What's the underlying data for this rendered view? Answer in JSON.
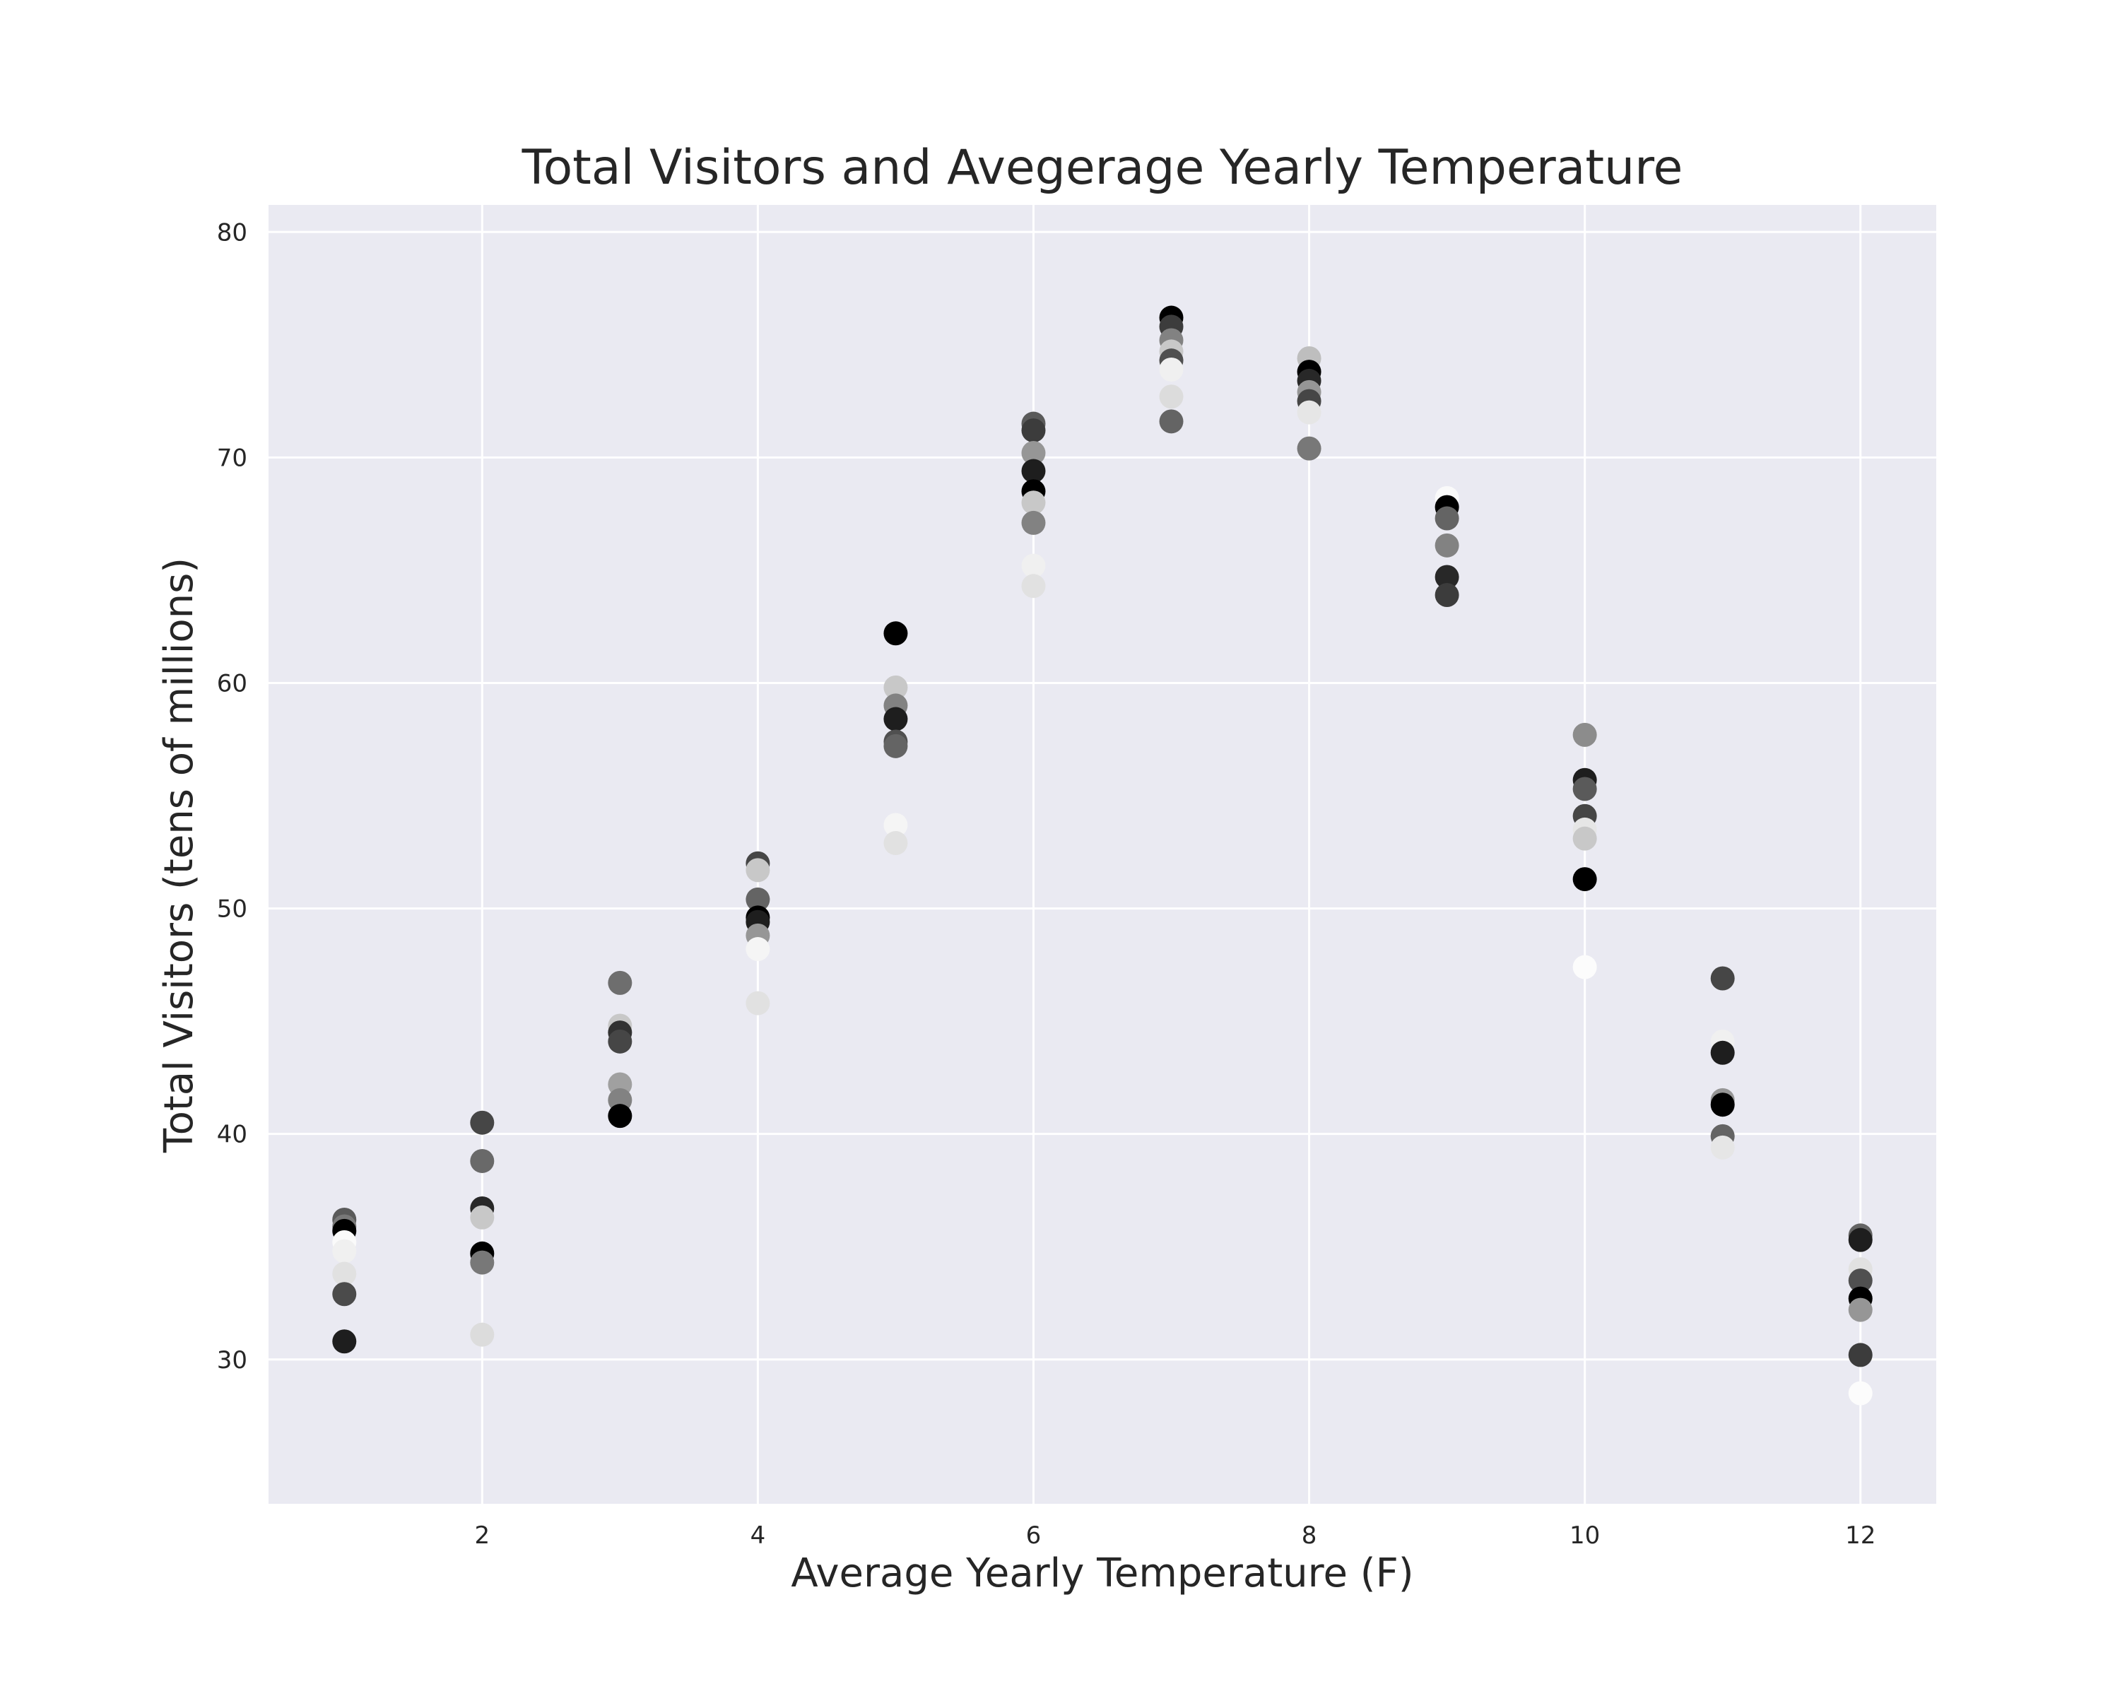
{
  "chart_data": {
    "type": "scatter",
    "title": "Total Visitors and Avegerage Yearly Temperature",
    "xlabel": "Average Yearly Temperature (F)",
    "ylabel": "Total Visitors (tens of millions)",
    "xlim": [
      0.45,
      12.55
    ],
    "ylim": [
      23.6,
      81.2
    ],
    "xticks": [
      2,
      4,
      6,
      8,
      10,
      12
    ],
    "yticks": [
      30,
      40,
      50,
      60,
      70,
      80
    ],
    "grid": true,
    "background": "#eaeaf2",
    "points": [
      {
        "x": 1,
        "y": 36.2,
        "g": 90
      },
      {
        "x": 1,
        "y": 35.9,
        "g": 120
      },
      {
        "x": 1,
        "y": 35.7,
        "g": 0
      },
      {
        "x": 1,
        "y": 35.2,
        "g": 250
      },
      {
        "x": 1,
        "y": 34.8,
        "g": 240
      },
      {
        "x": 1,
        "y": 33.8,
        "g": 225
      },
      {
        "x": 1,
        "y": 32.9,
        "g": 75
      },
      {
        "x": 1,
        "y": 30.8,
        "g": 30
      },
      {
        "x": 2,
        "y": 40.5,
        "g": 70
      },
      {
        "x": 2,
        "y": 38.8,
        "g": 105
      },
      {
        "x": 2,
        "y": 36.7,
        "g": 40
      },
      {
        "x": 2,
        "y": 36.3,
        "g": 200
      },
      {
        "x": 2,
        "y": 34.7,
        "g": 0
      },
      {
        "x": 2,
        "y": 34.3,
        "g": 120
      },
      {
        "x": 2,
        "y": 31.1,
        "g": 220
      },
      {
        "x": 3,
        "y": 46.7,
        "g": 110
      },
      {
        "x": 3,
        "y": 44.8,
        "g": 200
      },
      {
        "x": 3,
        "y": 44.5,
        "g": 50
      },
      {
        "x": 3,
        "y": 44.1,
        "g": 70
      },
      {
        "x": 3,
        "y": 42.2,
        "g": 160
      },
      {
        "x": 3,
        "y": 41.5,
        "g": 130
      },
      {
        "x": 3,
        "y": 40.8,
        "g": 0
      },
      {
        "x": 4,
        "y": 52.0,
        "g": 70
      },
      {
        "x": 4,
        "y": 51.7,
        "g": 200
      },
      {
        "x": 4,
        "y": 50.4,
        "g": 100
      },
      {
        "x": 4,
        "y": 49.6,
        "g": 0
      },
      {
        "x": 4,
        "y": 49.4,
        "g": 30
      },
      {
        "x": 4,
        "y": 48.8,
        "g": 150
      },
      {
        "x": 4,
        "y": 48.2,
        "g": 245
      },
      {
        "x": 4,
        "y": 45.8,
        "g": 225
      },
      {
        "x": 5,
        "y": 62.2,
        "g": 0
      },
      {
        "x": 5,
        "y": 59.8,
        "g": 200
      },
      {
        "x": 5,
        "y": 59.0,
        "g": 130
      },
      {
        "x": 5,
        "y": 58.4,
        "g": 30
      },
      {
        "x": 5,
        "y": 57.4,
        "g": 80
      },
      {
        "x": 5,
        "y": 57.2,
        "g": 100
      },
      {
        "x": 5,
        "y": 53.7,
        "g": 245
      },
      {
        "x": 5,
        "y": 52.9,
        "g": 225
      },
      {
        "x": 6,
        "y": 71.5,
        "g": 90
      },
      {
        "x": 6,
        "y": 71.2,
        "g": 60
      },
      {
        "x": 6,
        "y": 70.2,
        "g": 150
      },
      {
        "x": 6,
        "y": 69.4,
        "g": 30
      },
      {
        "x": 6,
        "y": 68.5,
        "g": 0
      },
      {
        "x": 6,
        "y": 68.0,
        "g": 200
      },
      {
        "x": 6,
        "y": 67.1,
        "g": 130
      },
      {
        "x": 6,
        "y": 65.2,
        "g": 240
      },
      {
        "x": 6,
        "y": 64.3,
        "g": 225
      },
      {
        "x": 7,
        "y": 76.2,
        "g": 0
      },
      {
        "x": 7,
        "y": 75.8,
        "g": 60
      },
      {
        "x": 7,
        "y": 75.2,
        "g": 130
      },
      {
        "x": 7,
        "y": 74.7,
        "g": 200
      },
      {
        "x": 7,
        "y": 74.3,
        "g": 80
      },
      {
        "x": 7,
        "y": 73.9,
        "g": 240
      },
      {
        "x": 7,
        "y": 72.7,
        "g": 220
      },
      {
        "x": 7,
        "y": 71.6,
        "g": 100
      },
      {
        "x": 8,
        "y": 74.4,
        "g": 190
      },
      {
        "x": 8,
        "y": 73.8,
        "g": 0
      },
      {
        "x": 8,
        "y": 73.4,
        "g": 40
      },
      {
        "x": 8,
        "y": 72.9,
        "g": 150
      },
      {
        "x": 8,
        "y": 72.5,
        "g": 70
      },
      {
        "x": 8,
        "y": 72.0,
        "g": 230
      },
      {
        "x": 8,
        "y": 70.4,
        "g": 120
      },
      {
        "x": 9,
        "y": 68.2,
        "g": 250
      },
      {
        "x": 9,
        "y": 67.8,
        "g": 0
      },
      {
        "x": 9,
        "y": 67.3,
        "g": 100
      },
      {
        "x": 9,
        "y": 66.1,
        "g": 130
      },
      {
        "x": 9,
        "y": 64.7,
        "g": 40
      },
      {
        "x": 9,
        "y": 63.9,
        "g": 60
      },
      {
        "x": 10,
        "y": 57.7,
        "g": 140
      },
      {
        "x": 10,
        "y": 55.7,
        "g": 30
      },
      {
        "x": 10,
        "y": 55.3,
        "g": 90
      },
      {
        "x": 10,
        "y": 54.1,
        "g": 70
      },
      {
        "x": 10,
        "y": 53.5,
        "g": 230
      },
      {
        "x": 10,
        "y": 53.1,
        "g": 200
      },
      {
        "x": 10,
        "y": 51.3,
        "g": 0
      },
      {
        "x": 10,
        "y": 47.4,
        "g": 252
      },
      {
        "x": 11,
        "y": 46.9,
        "g": 70
      },
      {
        "x": 11,
        "y": 44.1,
        "g": 240
      },
      {
        "x": 11,
        "y": 43.6,
        "g": 30
      },
      {
        "x": 11,
        "y": 41.5,
        "g": 150
      },
      {
        "x": 11,
        "y": 41.3,
        "g": 0
      },
      {
        "x": 11,
        "y": 39.9,
        "g": 100
      },
      {
        "x": 11,
        "y": 39.4,
        "g": 230
      },
      {
        "x": 12,
        "y": 35.5,
        "g": 100
      },
      {
        "x": 12,
        "y": 35.3,
        "g": 30
      },
      {
        "x": 12,
        "y": 34.0,
        "g": 225
      },
      {
        "x": 12,
        "y": 33.5,
        "g": 80
      },
      {
        "x": 12,
        "y": 32.7,
        "g": 0
      },
      {
        "x": 12,
        "y": 32.2,
        "g": 150
      },
      {
        "x": 12,
        "y": 30.2,
        "g": 60
      },
      {
        "x": 12,
        "y": 28.5,
        "g": 252
      }
    ]
  }
}
